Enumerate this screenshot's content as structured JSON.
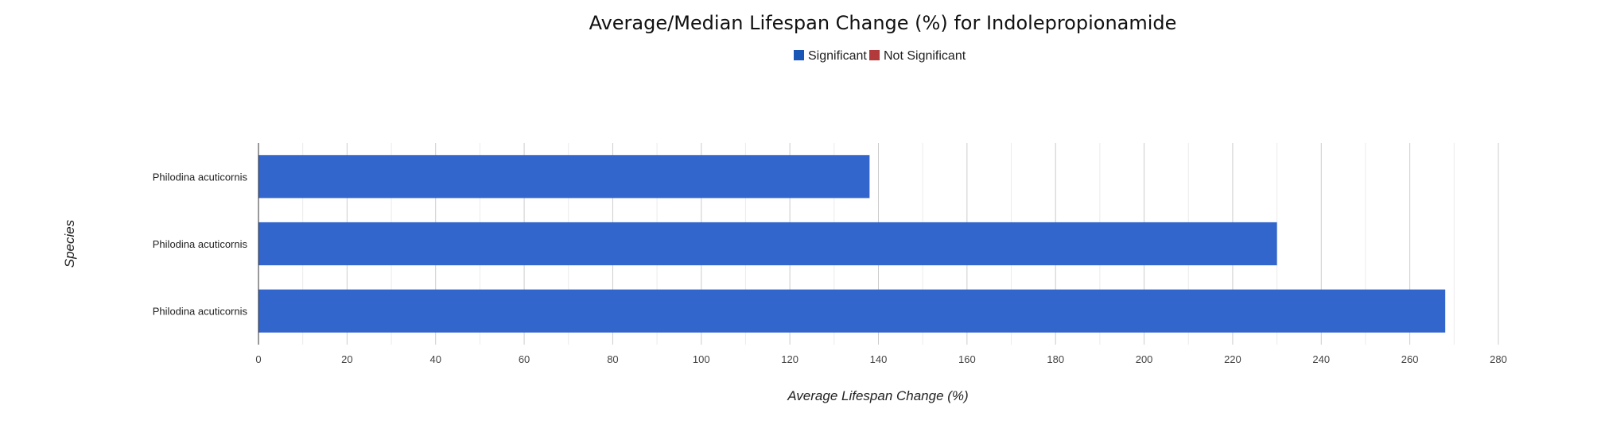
{
  "chart_data": {
    "type": "bar",
    "orientation": "horizontal",
    "title": "Average/Median Lifespan Change (%) for Indolepropionamide",
    "xlabel": "Average Lifespan Change (%)",
    "ylabel": "Species",
    "xlim": [
      0,
      280
    ],
    "x_ticks": [
      "0",
      "20",
      "40",
      "60",
      "80",
      "100",
      "120",
      "140",
      "160",
      "180",
      "200",
      "220",
      "240",
      "260",
      "280"
    ],
    "categories": [
      "Philodina acuticornis",
      "Philodina acuticornis",
      "Philodina acuticornis"
    ],
    "values": [
      138,
      230,
      268
    ],
    "grid": true,
    "legend_position": "top",
    "legend": [
      {
        "label": "Significant",
        "color": "#1a56b5"
      },
      {
        "label": "Not Significant",
        "color": "#b23a3a"
      }
    ],
    "bar_color": "#3366cc"
  }
}
